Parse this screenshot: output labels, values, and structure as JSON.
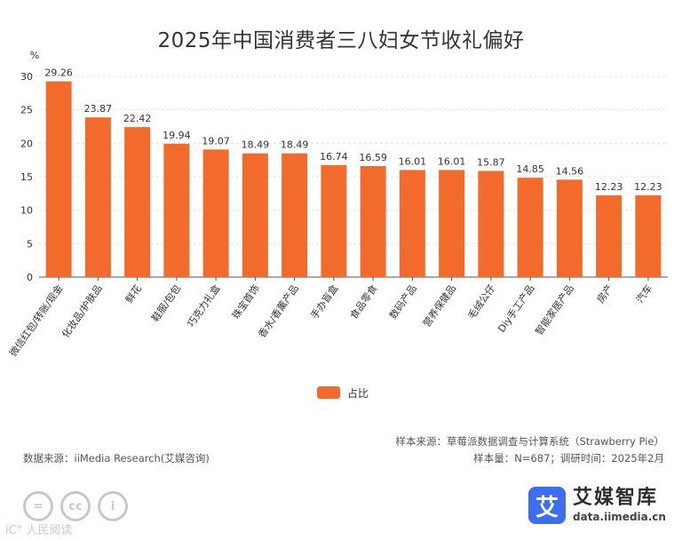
{
  "chart_data": {
    "type": "bar",
    "title": "2025年中国消费者三八妇女节收礼偏好",
    "ylabel": "%",
    "ylim": [
      0,
      30
    ],
    "yticks": [
      0,
      5,
      10,
      15,
      20,
      25,
      30
    ],
    "grid": true,
    "categories": [
      "微信红包/转账/现金",
      "化妆品/护肤品",
      "鲜花",
      "鞋服/包包",
      "巧克力礼盒",
      "珠宝首饰",
      "香水/香薰产品",
      "手办盲盒",
      "食品零食",
      "数码产品",
      "营养保健品",
      "毛绒公仔",
      "Diy手工产品",
      "智能家居产品",
      "房产",
      "汽车"
    ],
    "series": [
      {
        "name": "占比",
        "color": "#f26b2c",
        "values": [
          29.26,
          23.87,
          22.42,
          19.94,
          19.07,
          18.49,
          18.49,
          16.74,
          16.59,
          16.01,
          16.01,
          15.87,
          14.85,
          14.56,
          12.23,
          12.23
        ],
        "labels": [
          "29.26",
          "23.87",
          "22.42",
          "19.94",
          "19.07",
          "18.49",
          "18.49",
          "16.74",
          "16.59",
          "16.01",
          "16.01",
          "15.87",
          "14.85",
          "14.56",
          "12.23",
          "12.23"
        ]
      }
    ],
    "legend": "bottom-center"
  },
  "footer": {
    "source": "数据来源：iiMedia Research(艾媒咨询)",
    "sample_source": "样本来源：草莓派数据调查与计算系统（Strawberry Pie）",
    "sample_info": "样本量：N=687；调研时间：2025年2月"
  },
  "branding": {
    "logo_glyph": "艾",
    "name": "艾媒智库",
    "url": "data.iimedia.cn"
  },
  "license": {
    "icon1": "=",
    "icon2": "cc",
    "icon3": "i"
  },
  "watermark": "iC° 人民阅读"
}
